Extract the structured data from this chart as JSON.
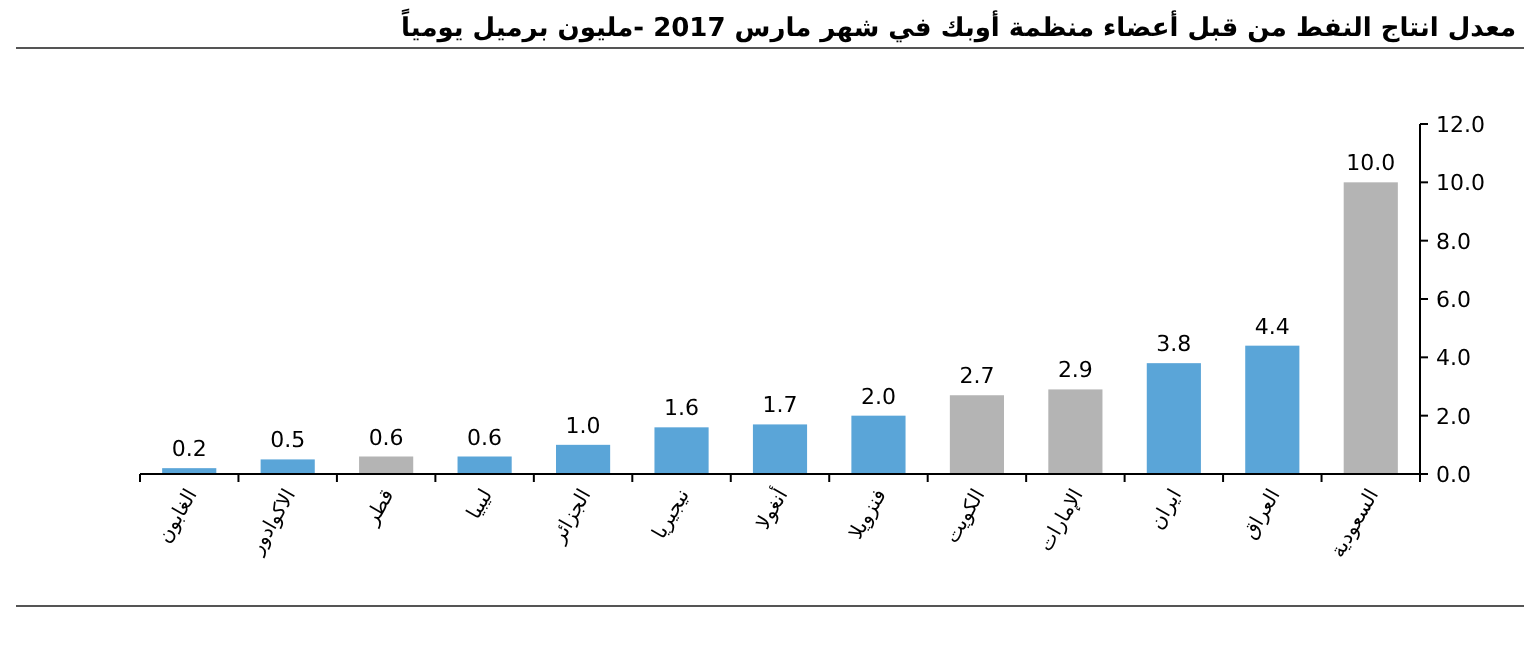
{
  "chart_data": {
    "type": "bar",
    "title": "معدل انتاج النفط من قبل أعضاء منظمة أوبك في شهر مارس 2017 -مليون برميل يومياً",
    "categories": [
      "الغابون",
      "الاكوادور",
      "قطر",
      "ليبيا",
      "الجزائر",
      "نيجيريا",
      "أنغولا",
      "فنزويلا",
      "الكويت",
      "الإمارات",
      "ايران",
      "العراق",
      "السعودية"
    ],
    "values": [
      0.2,
      0.5,
      0.6,
      0.6,
      1.0,
      1.6,
      1.7,
      2.0,
      2.7,
      2.9,
      3.8,
      4.4,
      10.0
    ],
    "colors": [
      "#5aa5d8",
      "#5aa5d8",
      "#b4b4b4",
      "#5aa5d8",
      "#5aa5d8",
      "#5aa5d8",
      "#5aa5d8",
      "#5aa5d8",
      "#b4b4b4",
      "#b4b4b4",
      "#5aa5d8",
      "#5aa5d8",
      "#b4b4b4"
    ],
    "value_labels": [
      "0.2",
      "0.5",
      "0.6",
      "0.6",
      "1.0",
      "1.6",
      "1.7",
      "2.0",
      "2.7",
      "2.9",
      "3.8",
      "4.4",
      "10.0"
    ],
    "ylim": [
      0,
      12
    ],
    "yticks": [
      {
        "value": 0,
        "label": "0.0"
      },
      {
        "value": 2,
        "label": "2.0"
      },
      {
        "value": 4,
        "label": "4.0"
      },
      {
        "value": 6,
        "label": "6.0"
      },
      {
        "value": 8,
        "label": "8.0"
      },
      {
        "value": 10,
        "label": "10.0"
      },
      {
        "value": 12,
        "label": "12.0"
      }
    ],
    "grid": false
  }
}
